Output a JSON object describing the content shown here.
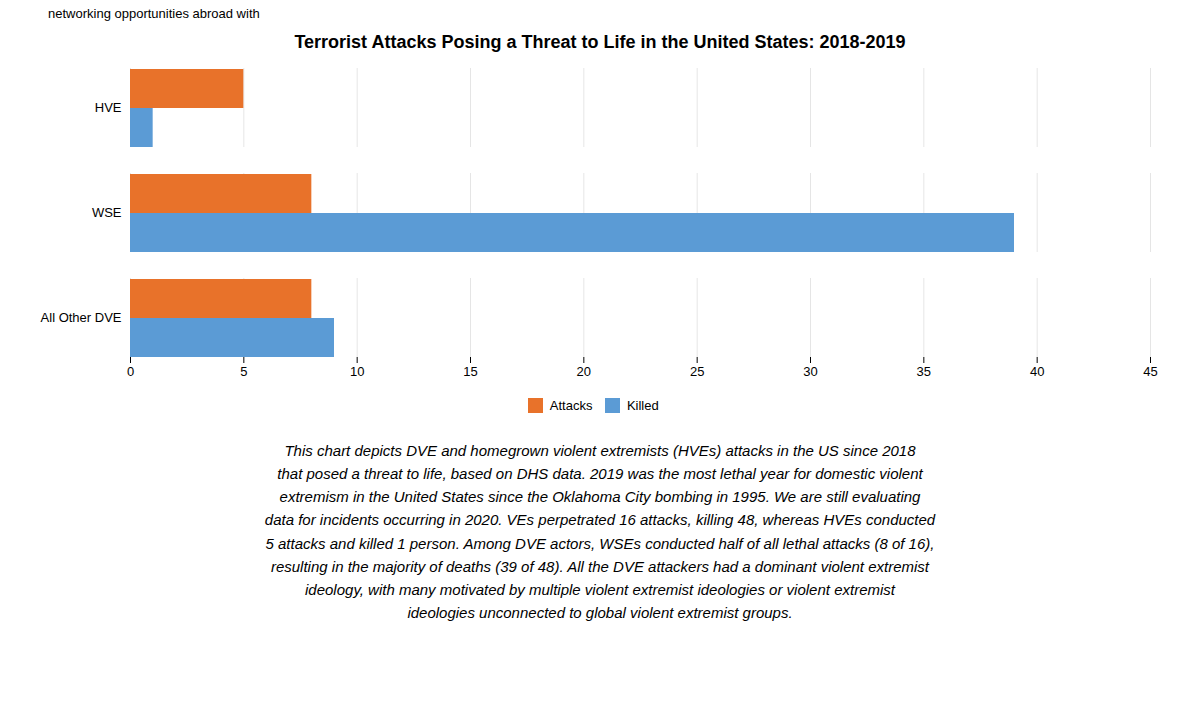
{
  "chart_data": {
    "type": "bar",
    "orientation": "horizontal",
    "title": "Terrorist Attacks Posing a Threat to Life in the United States: 2018-2019",
    "header": "networking opportunities abroad with",
    "annotation": "This chart depicts DVE and homegrown violent extremists (HVEs) attacks in the US since 2018\nthat posed a threat to life, based on DHS data. 2019 was the most lethal year for domestic violent\nextremism in the United States since the Oklahoma City bombing in 1995.  We are still evaluating\ndata for incidents occurring in 2020. VEs perpetrated 16 attacks, killing 48, whereas HVEs conducted\n5 attacks and killed 1 person. Among DVE actors, WSEs conducted half of all lethal attacks (8 of 16),\nresulting in the majority of deaths (39 of 48).  All the DVE attackers had a dominant violent extremist\nideology, with many motivated by multiple violent extremist ideologies or violent extremist\nideologies unconnected to global violent extremist groups.",
    "categories": [
      "All Other DVE",
      "WSE",
      "HVE"
    ],
    "series": [
      {
        "name": "Attacks",
        "color": "#E8722A",
        "values": [
          8,
          8,
          5
        ]
      },
      {
        "name": "Killed",
        "color": "#5B9BD5",
        "values": [
          9,
          39,
          1
        ]
      }
    ],
    "xlim": [
      0,
      45
    ],
    "xticks": [
      0,
      5,
      10,
      15,
      20,
      25,
      30,
      35,
      40,
      45
    ],
    "grid": true,
    "legend": "bottom"
  }
}
